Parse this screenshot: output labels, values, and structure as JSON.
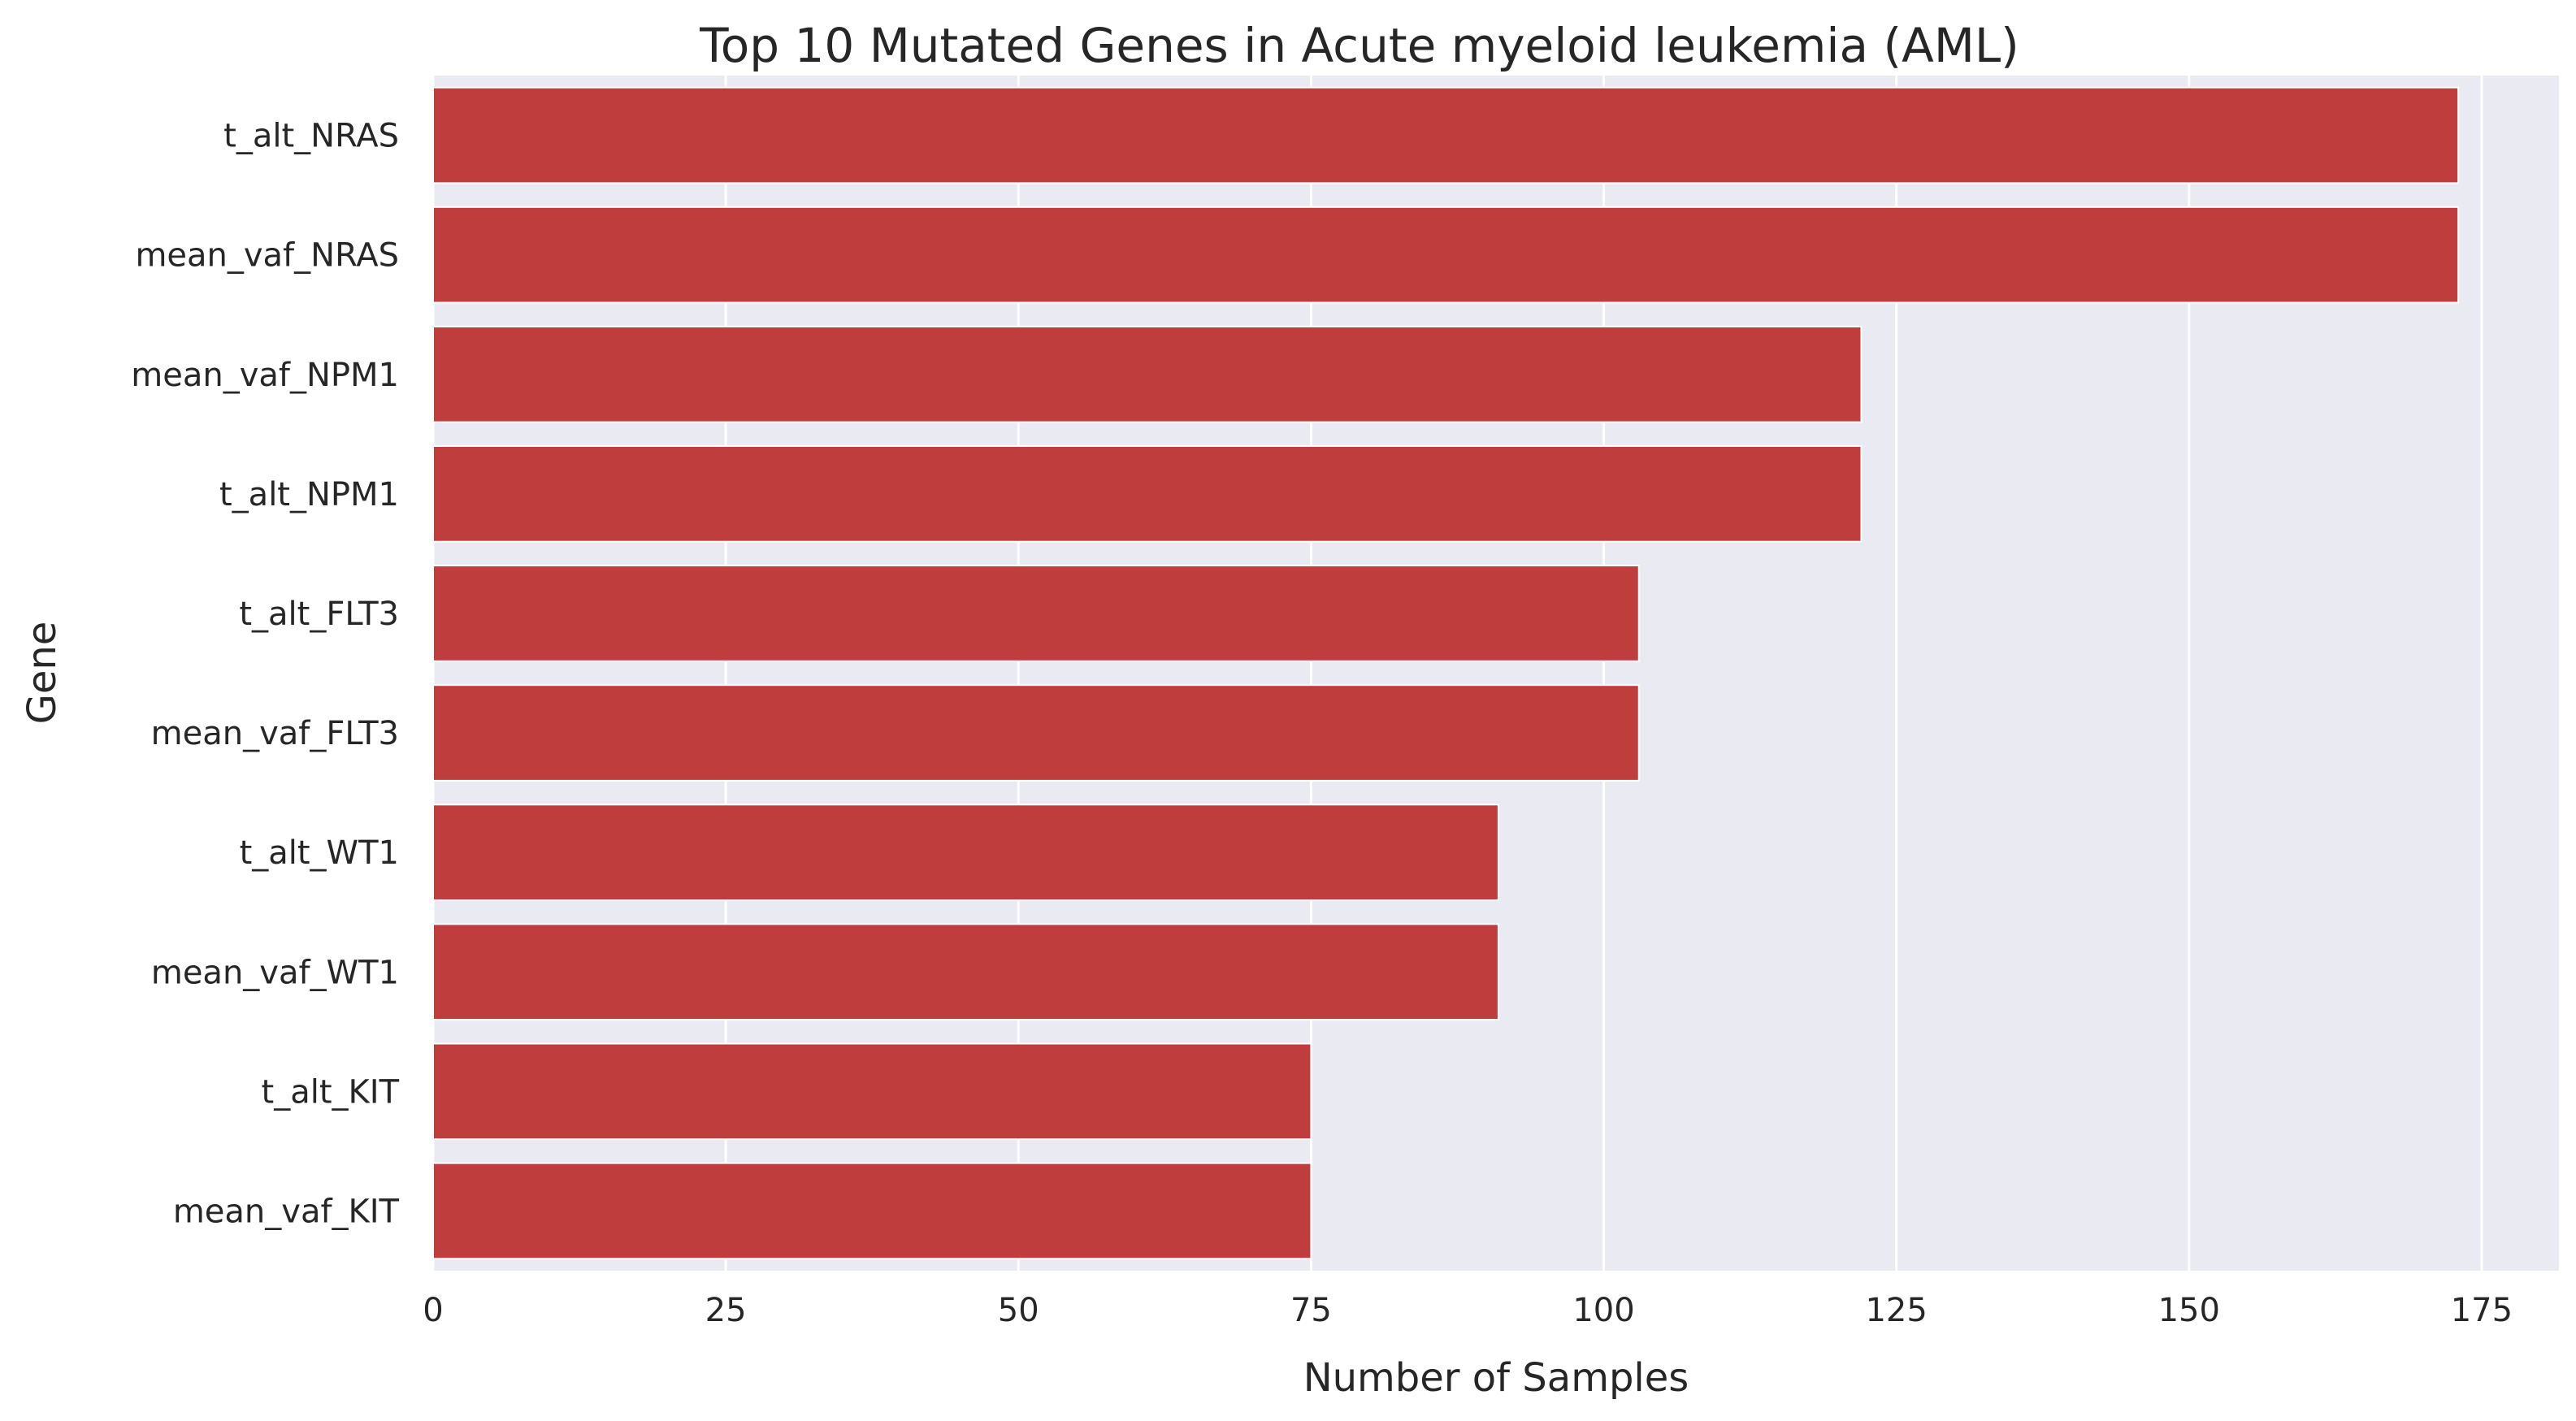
{
  "chart_data": {
    "type": "bar",
    "orientation": "horizontal",
    "title": "Top 10 Mutated Genes in Acute myeloid leukemia (AML)",
    "xlabel": "Number of Samples",
    "ylabel": "Gene",
    "categories": [
      "t_alt_NRAS",
      "mean_vaf_NRAS",
      "mean_vaf_NPM1",
      "t_alt_NPM1",
      "t_alt_FLT3",
      "mean_vaf_FLT3",
      "t_alt_WT1",
      "mean_vaf_WT1",
      "t_alt_KIT",
      "mean_vaf_KIT"
    ],
    "values": [
      173,
      173,
      122,
      122,
      103,
      103,
      91,
      91,
      75,
      75
    ],
    "xlim": [
      0,
      181.6
    ],
    "xticks": [
      0,
      25,
      50,
      75,
      100,
      125,
      150,
      175
    ],
    "xtick_labels": [
      "0",
      "25",
      "50",
      "75",
      "100",
      "125",
      "150",
      "175"
    ],
    "grid": true,
    "colors": {
      "bar": "#c03d3e",
      "plot_background": "#eaeaf2",
      "grid": "#ffffff",
      "text": "#262626"
    }
  }
}
